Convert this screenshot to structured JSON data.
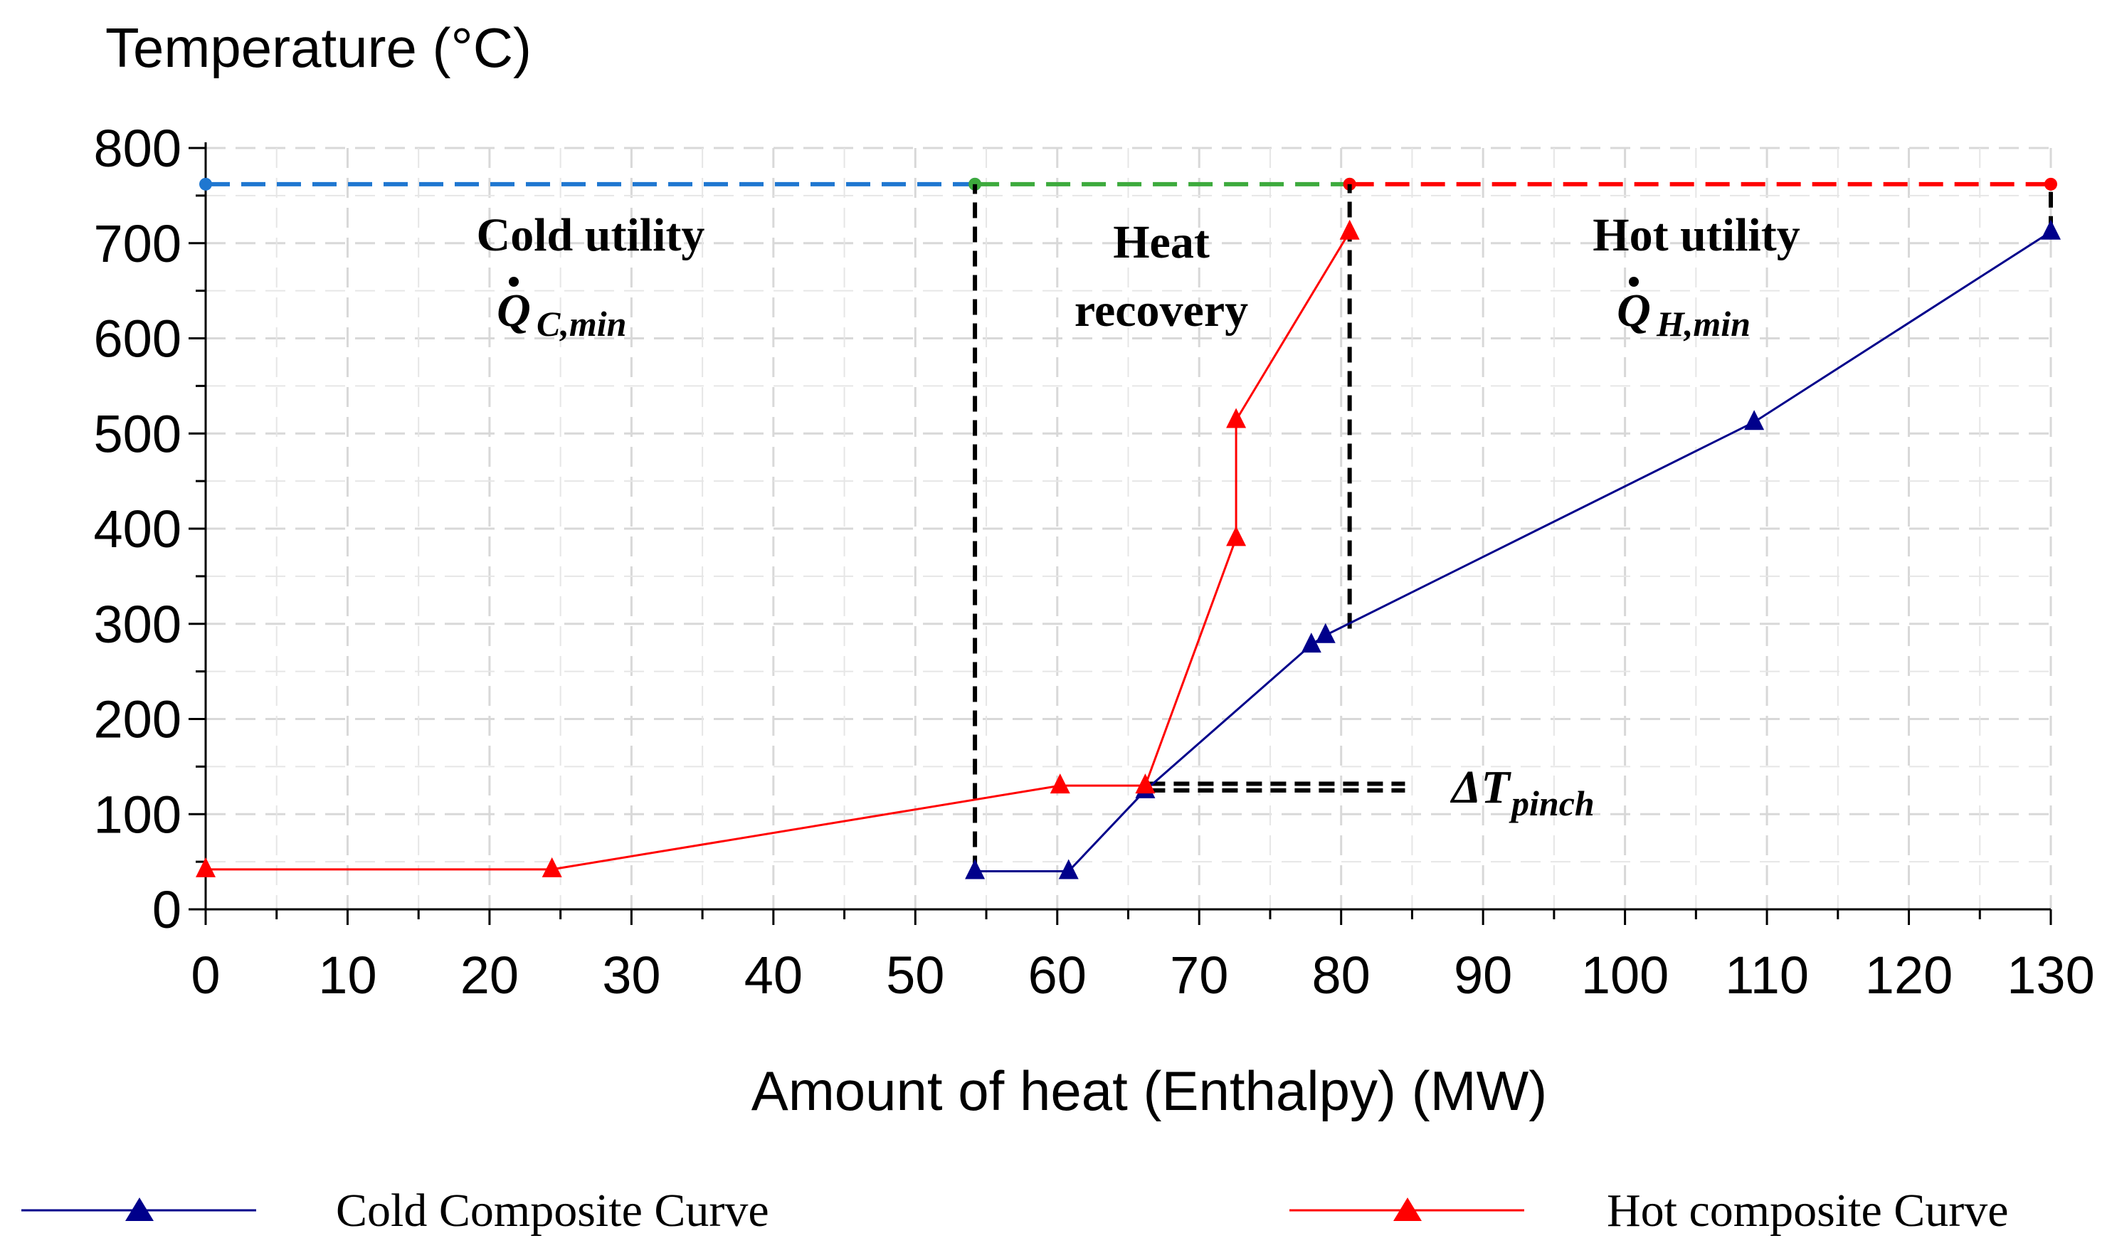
{
  "chart_data": {
    "type": "line",
    "ylabel": "Temperature (°C)",
    "xlabel": "Amount of heat (Enthalpy) (MW)",
    "xlim": [
      0,
      130
    ],
    "ylim": [
      0,
      800
    ],
    "x_ticks": [
      "0",
      "10",
      "20",
      "30",
      "40",
      "50",
      "60",
      "70",
      "80",
      "90",
      "100",
      "110",
      "120",
      "130"
    ],
    "y_ticks": [
      "0",
      "100",
      "200",
      "300",
      "400",
      "500",
      "600",
      "700",
      "800"
    ],
    "grid": true,
    "legend_position": "bottom",
    "series": [
      {
        "name": "Cold Composite Curve",
        "color": "#00008B",
        "marker": "triangle",
        "x": [
          54.2,
          60.8,
          66.2,
          77.9,
          78.9,
          109.1,
          130
        ],
        "y": [
          40,
          40,
          125,
          278,
          288,
          512,
          712
        ]
      },
      {
        "name": "Hot composite Curve",
        "color": "#FF0000",
        "marker": "triangle",
        "x": [
          0,
          24.4,
          60.2,
          66.2,
          72.6,
          72.6,
          80.6
        ],
        "y": [
          42,
          42,
          130,
          130,
          390,
          514,
          712
        ]
      }
    ],
    "utility_lines": [
      {
        "segment": "cold-utility-line",
        "color": "#1F77D0",
        "x": [
          0,
          54.2
        ],
        "y": [
          762,
          762
        ]
      },
      {
        "segment": "heat-recovery-line",
        "color": "#3DAA3D",
        "x": [
          54.2,
          80.6
        ],
        "y": [
          762,
          762
        ]
      },
      {
        "segment": "hot-utility-line",
        "color": "#FF0000",
        "x": [
          80.6,
          130
        ],
        "y": [
          762,
          762
        ]
      }
    ],
    "black_dashed_lines": [
      {
        "segment": "pinch-left-boundary",
        "x": [
          54.2,
          54.2
        ],
        "y": [
          40,
          762
        ]
      },
      {
        "segment": "pinch-right-boundary",
        "x": [
          80.6,
          80.6
        ],
        "y": [
          295,
          762
        ]
      },
      {
        "segment": "pinch-temperature-gap",
        "x": [
          66.5,
          84.5
        ],
        "y": [
          125,
          125
        ]
      },
      {
        "segment": "pinch-temperature-gap",
        "x": [
          66.5,
          84.5
        ],
        "y": [
          132,
          132
        ]
      },
      {
        "segment": "hot-end-gap",
        "x": [
          130,
          130
        ],
        "y": [
          712,
          762
        ]
      }
    ],
    "annotations": {
      "cold_utility": {
        "line1": "Cold utility",
        "symbol": "Q",
        "subscript": "C,min"
      },
      "heat_recovery": {
        "line1": "Heat",
        "line2": "recovery"
      },
      "hot_utility": {
        "line1": "Hot utility",
        "symbol": "Q",
        "subscript": "H,min"
      },
      "pinch": {
        "symbol": "ΔT",
        "subscript": "pinch"
      }
    }
  }
}
